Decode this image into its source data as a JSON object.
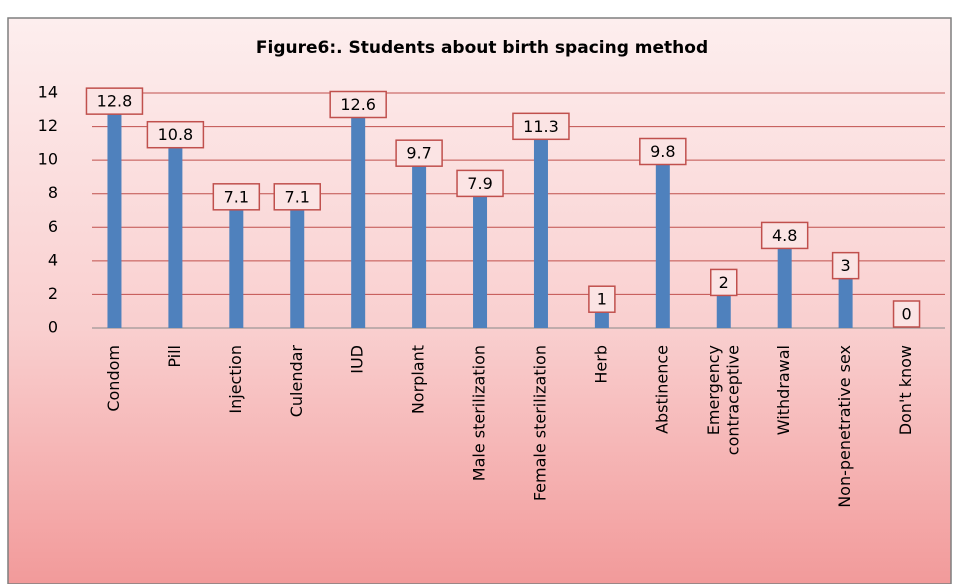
{
  "chart_data": {
    "type": "bar",
    "title": "Figure6:. Students about birth spacing method",
    "categories": [
      "Condom",
      "Pill",
      "Injection",
      "Culendar",
      "IUD",
      "Norplant",
      "Male sterilization",
      "Female sterilization",
      "Herb",
      "Abstinence",
      "Emergency\ncontraceptive",
      "Withdrawal",
      "Non-penetrative sex",
      "Don't know"
    ],
    "values": [
      12.8,
      10.8,
      7.1,
      7.1,
      12.6,
      9.7,
      7.9,
      11.3,
      1,
      9.8,
      2,
      4.8,
      3,
      0
    ],
    "color": "#4f81bd",
    "grid_color": "#c0504d",
    "ylim": [
      0,
      14
    ],
    "yticks": [
      0,
      2,
      4,
      6,
      8,
      10,
      12,
      14
    ],
    "grid": true
  }
}
